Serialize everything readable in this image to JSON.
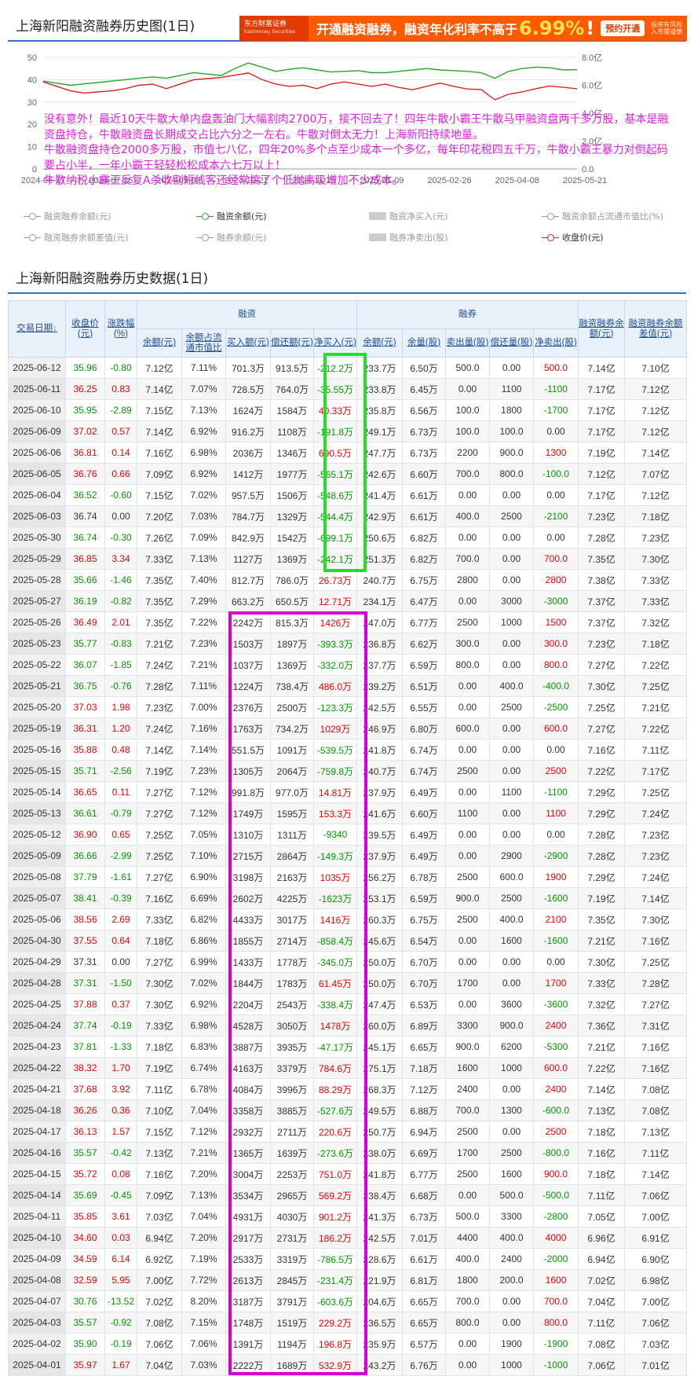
{
  "chart_section": {
    "title": "上海新阳融资融券历史图(1日)",
    "banner": {
      "logo_line1": "东方财富证券",
      "logo_line2": "Eastmoney Securities",
      "headline": "开通融资融券，融资年化利率不高于",
      "rate": "6.99%",
      "rate_mark": "!",
      "button": "预约开通",
      "risk1": "投资有风险",
      "risk2": "入市需谨慎"
    },
    "legend": [
      {
        "label": "融资融券余额(元)",
        "kind": "line",
        "on": false
      },
      {
        "label": "融资余额(元)",
        "kind": "line",
        "on": true,
        "color": "#2aa52a"
      },
      {
        "label": "融资净买入(元)",
        "kind": "bar",
        "on": false
      },
      {
        "label": "融资余额占流通市值比(%)",
        "kind": "line",
        "on": false
      },
      {
        "label": "融资融券余额差值(元)",
        "kind": "line",
        "on": false
      },
      {
        "label": "融券余额(元)",
        "kind": "line",
        "on": false
      },
      {
        "label": "融券净卖出(股)",
        "kind": "bar",
        "on": false
      },
      {
        "label": "收盘价(元)",
        "kind": "line",
        "on": true,
        "color": "#dd2222"
      }
    ],
    "annotation": [
      "没有意外！最近10天牛散大单内盘轰油门大幅割肉2700万，接不回去了！四年牛散小霸王牛散马甲融资盘两千多万股，基本是融资盘持仓，牛散融资盘长期成交占比六分之一左右。牛散对倒太无力！上海新阳持续地量。",
      "牛散融资盘持仓2000多万股，市值七八亿，四年20%多个点至少成本一个多亿，每年印花税四五千万，牛散小霸王暴力对倒起码要占小半，一年小霸王轻轻松松成本六七万以上！",
      "牛散纳税小霸王反复A杀收割短线客还经常搞了个低抛高吸增加不少成本。"
    ]
  },
  "chart_data": {
    "type": "line",
    "x_ticks": [
      "2024-06-17",
      "2024-07-25",
      "2024-09-03",
      "2024-10-22",
      "2024-11-29",
      "2025-01-09",
      "2025-02-26",
      "2025-04-08",
      "2025-05-21"
    ],
    "y_left": {
      "ticks": [
        "0",
        "10",
        "20",
        "30",
        "40",
        "50"
      ],
      "range": [
        0,
        50
      ]
    },
    "y_right": {
      "ticks": [
        "0.0",
        "2.0亿",
        "4.0亿",
        "6.0亿",
        "8.0亿"
      ],
      "range": [
        0,
        8
      ]
    },
    "series": [
      {
        "name": "融资余额(元)",
        "axis": "right",
        "color": "#2aa52a",
        "values": [
          6.3,
          6.15,
          6.0,
          6.1,
          6.2,
          6.3,
          6.4,
          6.5,
          6.6,
          6.5,
          6.7,
          6.9,
          6.8,
          6.7,
          7.2,
          7.6,
          7.3,
          7.0,
          7.15,
          7.25,
          7.1,
          6.95,
          7.0,
          7.05,
          6.9,
          6.9,
          7.0,
          7.1,
          7.2,
          7.1,
          7.05,
          7.0,
          6.9,
          6.5,
          7.0,
          7.2,
          7.3,
          7.25,
          7.1,
          7.12
        ]
      },
      {
        "name": "收盘价(元)",
        "axis": "left",
        "color": "#dd2222",
        "values": [
          39,
          37,
          35,
          34,
          34.5,
          35,
          36,
          37.5,
          38,
          36,
          38,
          40,
          40.5,
          41,
          42,
          43,
          40,
          38,
          37,
          37.5,
          36,
          38,
          39,
          38,
          37,
          38,
          36.5,
          35.5,
          37,
          38.5,
          37,
          35.8,
          35.6,
          31,
          33.5,
          34.5,
          36,
          37.2,
          36.6,
          35.96
        ]
      }
    ]
  },
  "table_section": {
    "title": "上海新阳融资融券历史数据(1日)",
    "headers": {
      "date": "交易日期",
      "sort_arrow": "↓",
      "close": "收盘价(元)",
      "change": "涨跌幅(%)",
      "financing_group": "融资",
      "lending_group": "融券",
      "fin_balance": "余额(元)",
      "fin_ratio": "余额占流通市值比",
      "buy": "买入额(元)",
      "repay": "偿还额(元)",
      "net_buy": "净买入(元)",
      "lend_balance": "余额(元)",
      "lend_qty": "余量(股)",
      "sell_qty": "卖出量(股)",
      "repay_qty": "偿还量(股)",
      "net_sell": "净卖出(股)",
      "total_balance": "融资融券余额(元)",
      "diff": "融资融券余额差值(元)"
    },
    "rows": [
      [
        "2025-06-12",
        "35.96",
        "-0.80",
        "7.12亿",
        "7.11%",
        "701.3万",
        "913.5万",
        "-212.2万",
        "233.7万",
        "6.50万",
        "500.0",
        "0.00",
        "500.0",
        "7.14亿",
        "7.10亿"
      ],
      [
        "2025-06-11",
        "36.25",
        "0.83",
        "7.14亿",
        "7.07%",
        "728.5万",
        "764.0万",
        "-35.55万",
        "233.8万",
        "6.45万",
        "0.00",
        "1100",
        "-1100",
        "7.17亿",
        "7.12亿"
      ],
      [
        "2025-06-10",
        "35.95",
        "-2.89",
        "7.15亿",
        "7.13%",
        "1624万",
        "1584万",
        "40.33万",
        "235.8万",
        "6.56万",
        "100.0",
        "1800",
        "-1700",
        "7.17亿",
        "7.12亿"
      ],
      [
        "2025-06-09",
        "37.02",
        "0.57",
        "7.14亿",
        "6.92%",
        "916.2万",
        "1108万",
        "-191.8万",
        "249.1万",
        "6.73万",
        "100.0",
        "100.0",
        "0.00",
        "7.17亿",
        "7.12亿"
      ],
      [
        "2025-06-06",
        "36.81",
        "0.14",
        "7.16亿",
        "6.98%",
        "2036万",
        "1346万",
        "690.5万",
        "247.7万",
        "6.73万",
        "2200",
        "900.0",
        "1300",
        "7.19亿",
        "7.14亿"
      ],
      [
        "2025-06-05",
        "36.76",
        "0.66",
        "7.09亿",
        "6.92%",
        "1412万",
        "1977万",
        "-565.1万",
        "242.6万",
        "6.60万",
        "700.0",
        "800.0",
        "-100.0",
        "7.12亿",
        "7.07亿"
      ],
      [
        "2025-06-04",
        "36.52",
        "-0.60",
        "7.15亿",
        "7.02%",
        "957.5万",
        "1506万",
        "-548.6万",
        "241.4万",
        "6.61万",
        "0.00",
        "0.00",
        "0.00",
        "7.17亿",
        "7.12亿"
      ],
      [
        "2025-06-03",
        "36.74",
        "0.00",
        "7.20亿",
        "7.03%",
        "784.7万",
        "1329万",
        "-544.4万",
        "242.9万",
        "6.61万",
        "400.0",
        "2500",
        "-2100",
        "7.23亿",
        "7.18亿"
      ],
      [
        "2025-05-30",
        "36.74",
        "-0.30",
        "7.26亿",
        "7.09%",
        "842.9万",
        "1542万",
        "-699.1万",
        "250.6万",
        "6.82万",
        "0.00",
        "0.00",
        "0.00",
        "7.28亿",
        "7.23亿"
      ],
      [
        "2025-05-29",
        "36.85",
        "3.34",
        "7.33亿",
        "7.13%",
        "1127万",
        "1369万",
        "-242.1万",
        "251.3万",
        "6.82万",
        "700.0",
        "0.00",
        "700.0",
        "7.35亿",
        "7.30亿"
      ],
      [
        "2025-05-28",
        "35.66",
        "-1.46",
        "7.35亿",
        "7.40%",
        "812.7万",
        "786.0万",
        "26.73万",
        "240.7万",
        "6.75万",
        "2800",
        "0.00",
        "2800",
        "7.38亿",
        "7.33亿"
      ],
      [
        "2025-05-27",
        "36.19",
        "-0.82",
        "7.35亿",
        "7.29%",
        "663.2万",
        "650.5万",
        "12.71万",
        "234.1万",
        "6.47万",
        "0.00",
        "3000",
        "-3000",
        "7.37亿",
        "7.33亿"
      ],
      [
        "2025-05-26",
        "36.49",
        "2.01",
        "7.35亿",
        "7.22%",
        "2242万",
        "815.3万",
        "1426万",
        "247.0万",
        "6.77万",
        "2500",
        "1000",
        "1500",
        "7.37亿",
        "7.32亿"
      ],
      [
        "2025-05-23",
        "35.77",
        "-0.83",
        "7.21亿",
        "7.23%",
        "1503万",
        "1897万",
        "-393.3万",
        "236.8万",
        "6.62万",
        "300.0",
        "0.00",
        "300.0",
        "7.23亿",
        "7.18亿"
      ],
      [
        "2025-05-22",
        "36.07",
        "-1.85",
        "7.24亿",
        "7.21%",
        "1037万",
        "1369万",
        "-332.0万",
        "237.7万",
        "6.59万",
        "800.0",
        "0.00",
        "800.0",
        "7.27亿",
        "7.22亿"
      ],
      [
        "2025-05-21",
        "36.75",
        "-0.76",
        "7.28亿",
        "7.11%",
        "1224万",
        "738.4万",
        "486.0万",
        "239.2万",
        "6.51万",
        "0.00",
        "400.0",
        "-400.0",
        "7.30亿",
        "7.25亿"
      ],
      [
        "2025-05-20",
        "37.03",
        "1.98",
        "7.23亿",
        "7.00%",
        "2376万",
        "2500万",
        "-123.3万",
        "242.5万",
        "6.55万",
        "0.00",
        "2500",
        "-2500",
        "7.25亿",
        "7.21亿"
      ],
      [
        "2025-05-19",
        "36.31",
        "1.20",
        "7.24亿",
        "7.16%",
        "1763万",
        "734.2万",
        "1029万",
        "246.9万",
        "6.80万",
        "600.0",
        "0.00",
        "600.0",
        "7.27亿",
        "7.22亿"
      ],
      [
        "2025-05-16",
        "35.88",
        "0.48",
        "7.14亿",
        "7.14%",
        "551.5万",
        "1091万",
        "-539.5万",
        "241.8万",
        "6.74万",
        "0.00",
        "0.00",
        "0.00",
        "7.16亿",
        "7.11亿"
      ],
      [
        "2025-05-15",
        "35.71",
        "-2.56",
        "7.19亿",
        "7.23%",
        "1305万",
        "2064万",
        "-759.8万",
        "240.7万",
        "6.74万",
        "2500",
        "0.00",
        "2500",
        "7.22亿",
        "7.17亿"
      ],
      [
        "2025-05-14",
        "36.65",
        "0.11",
        "7.27亿",
        "7.12%",
        "991.8万",
        "977.0万",
        "14.81万",
        "237.9万",
        "6.49万",
        "0.00",
        "1100",
        "-1100",
        "7.29亿",
        "7.25亿"
      ],
      [
        "2025-05-13",
        "36.61",
        "-0.79",
        "7.27亿",
        "7.12%",
        "1749万",
        "1595万",
        "153.3万",
        "241.6万",
        "6.60万",
        "1100",
        "0.00",
        "1100",
        "7.29亿",
        "7.24亿"
      ],
      [
        "2025-05-12",
        "36.90",
        "0.65",
        "7.25亿",
        "7.05%",
        "1310万",
        "1311万",
        "-9340",
        "239.5万",
        "6.49万",
        "0.00",
        "0.00",
        "0.00",
        "7.28亿",
        "7.23亿"
      ],
      [
        "2025-05-09",
        "36.66",
        "-2.99",
        "7.25亿",
        "7.10%",
        "2715万",
        "2864万",
        "-149.3万",
        "237.9万",
        "6.49万",
        "0.00",
        "2900",
        "-2900",
        "7.28亿",
        "7.23亿"
      ],
      [
        "2025-05-08",
        "37.79",
        "-1.61",
        "7.27亿",
        "6.90%",
        "3198万",
        "2163万",
        "1035万",
        "256.2万",
        "6.78万",
        "2500",
        "600.0",
        "1900",
        "7.29亿",
        "7.24亿"
      ],
      [
        "2025-05-07",
        "38.41",
        "-0.39",
        "7.16亿",
        "6.69%",
        "2602万",
        "4225万",
        "-1623万",
        "253.1万",
        "6.59万",
        "900.0",
        "2500",
        "-1600",
        "7.19亿",
        "7.14亿"
      ],
      [
        "2025-05-06",
        "38.56",
        "2.69",
        "7.33亿",
        "6.82%",
        "4433万",
        "3017万",
        "1416万",
        "260.3万",
        "6.75万",
        "2500",
        "400.0",
        "2100",
        "7.35亿",
        "7.30亿"
      ],
      [
        "2025-04-30",
        "37.55",
        "0.64",
        "7.18亿",
        "6.86%",
        "1855万",
        "2714万",
        "-858.4万",
        "245.6万",
        "6.54万",
        "0.00",
        "1600",
        "-1600",
        "7.21亿",
        "7.16亿"
      ],
      [
        "2025-04-29",
        "37.31",
        "0.00",
        "7.27亿",
        "6.99%",
        "1433万",
        "1778万",
        "-345.0万",
        "250.0万",
        "6.70万",
        "0.00",
        "0.00",
        "0.00",
        "7.30亿",
        "7.25亿"
      ],
      [
        "2025-04-28",
        "37.31",
        "-1.50",
        "7.30亿",
        "7.02%",
        "1844万",
        "1783万",
        "61.45万",
        "250.0万",
        "6.70万",
        "1700",
        "0.00",
        "1700",
        "7.33亿",
        "7.28亿"
      ],
      [
        "2025-04-25",
        "37.88",
        "0.37",
        "7.30亿",
        "6.92%",
        "2204万",
        "2543万",
        "-338.4万",
        "247.4万",
        "6.53万",
        "0.00",
        "3600",
        "-3600",
        "7.32亿",
        "7.27亿"
      ],
      [
        "2025-04-24",
        "37.74",
        "-0.19",
        "7.33亿",
        "6.98%",
        "4528万",
        "3050万",
        "1478万",
        "260.0万",
        "6.89万",
        "3300",
        "900.0",
        "2400",
        "7.36亿",
        "7.31亿"
      ],
      [
        "2025-04-23",
        "37.81",
        "-1.33",
        "7.18亿",
        "6.83%",
        "3887万",
        "3935万",
        "-47.17万",
        "245.1万",
        "6.65万",
        "900.0",
        "6200",
        "-5300",
        "7.21亿",
        "7.16亿"
      ],
      [
        "2025-04-22",
        "38.32",
        "1.70",
        "7.19亿",
        "6.74%",
        "4163万",
        "3379万",
        "784.6万",
        "275.1万",
        "7.18万",
        "1600",
        "1000",
        "600.0",
        "7.22亿",
        "7.16亿"
      ],
      [
        "2025-04-21",
        "37.68",
        "3.92",
        "7.11亿",
        "6.78%",
        "4084万",
        "3996万",
        "88.29万",
        "268.3万",
        "7.12万",
        "2400",
        "0.00",
        "2400",
        "7.14亿",
        "7.08亿"
      ],
      [
        "2025-04-18",
        "36.26",
        "0.36",
        "7.10亿",
        "7.04%",
        "3358万",
        "3885万",
        "-527.6万",
        "249.5万",
        "6.88万",
        "700.0",
        "1300",
        "-600.0",
        "7.13亿",
        "7.08亿"
      ],
      [
        "2025-04-17",
        "36.13",
        "1.57",
        "7.15亿",
        "7.12%",
        "2932万",
        "2711万",
        "220.6万",
        "250.7万",
        "6.94万",
        "2500",
        "0.00",
        "2500",
        "7.18亿",
        "7.13亿"
      ],
      [
        "2025-04-16",
        "35.57",
        "-0.42",
        "7.13亿",
        "7.21%",
        "1365万",
        "1639万",
        "-273.6万",
        "238.0万",
        "6.69万",
        "1700",
        "2500",
        "-800.0",
        "7.16亿",
        "7.11亿"
      ],
      [
        "2025-04-15",
        "35.72",
        "0.08",
        "7.16亿",
        "7.20%",
        "3004万",
        "2253万",
        "751.0万",
        "241.8万",
        "6.77万",
        "2500",
        "1600",
        "900.0",
        "7.18亿",
        "7.14亿"
      ],
      [
        "2025-04-14",
        "35.69",
        "-0.45",
        "7.09亿",
        "7.13%",
        "3534万",
        "2965万",
        "569.2万",
        "238.4万",
        "6.68万",
        "0.00",
        "500.0",
        "-500.0",
        "7.11亿",
        "7.06亿"
      ],
      [
        "2025-04-11",
        "35.85",
        "3.61",
        "7.03亿",
        "7.04%",
        "4931万",
        "4030万",
        "901.2万",
        "241.3万",
        "6.73万",
        "500.0",
        "3300",
        "-2800",
        "7.05亿",
        "7.00亿"
      ],
      [
        "2025-04-10",
        "34.60",
        "0.03",
        "6.94亿",
        "7.20%",
        "2917万",
        "2731万",
        "186.2万",
        "242.5万",
        "7.01万",
        "4400",
        "400.0",
        "4000",
        "6.96亿",
        "6.91亿"
      ],
      [
        "2025-04-09",
        "34.59",
        "6.14",
        "6.92亿",
        "7.19%",
        "2533万",
        "3319万",
        "-786.5万",
        "228.6万",
        "6.61万",
        "400.0",
        "2400",
        "-2000",
        "6.94亿",
        "6.90亿"
      ],
      [
        "2025-04-08",
        "32.59",
        "5.95",
        "7.00亿",
        "7.72%",
        "2613万",
        "2845万",
        "-231.4万",
        "221.9万",
        "6.81万",
        "1800",
        "200.0",
        "1600",
        "7.02亿",
        "6.98亿"
      ],
      [
        "2025-04-07",
        "30.76",
        "-13.52",
        "7.02亿",
        "8.20%",
        "3187万",
        "3791万",
        "-603.6万",
        "204.6万",
        "6.65万",
        "700.0",
        "0.00",
        "700.0",
        "7.04亿",
        "7.00亿"
      ],
      [
        "2025-04-03",
        "35.57",
        "-0.92",
        "7.08亿",
        "7.15%",
        "1748万",
        "1519万",
        "229.2万",
        "236.5万",
        "6.65万",
        "800.0",
        "0.00",
        "800.0",
        "7.11亿",
        "7.06亿"
      ],
      [
        "2025-04-02",
        "35.90",
        "-0.19",
        "7.06亿",
        "7.06%",
        "1391万",
        "1194万",
        "196.8万",
        "235.9万",
        "6.57万",
        "0.00",
        "1900",
        "-1900",
        "7.08亿",
        "7.03亿"
      ],
      [
        "2025-04-01",
        "35.97",
        "1.67",
        "7.04亿",
        "7.03%",
        "2222万",
        "1689万",
        "532.9万",
        "243.2万",
        "6.76万",
        "0.00",
        "1000",
        "-1000",
        "7.06亿",
        "7.01亿"
      ]
    ]
  }
}
